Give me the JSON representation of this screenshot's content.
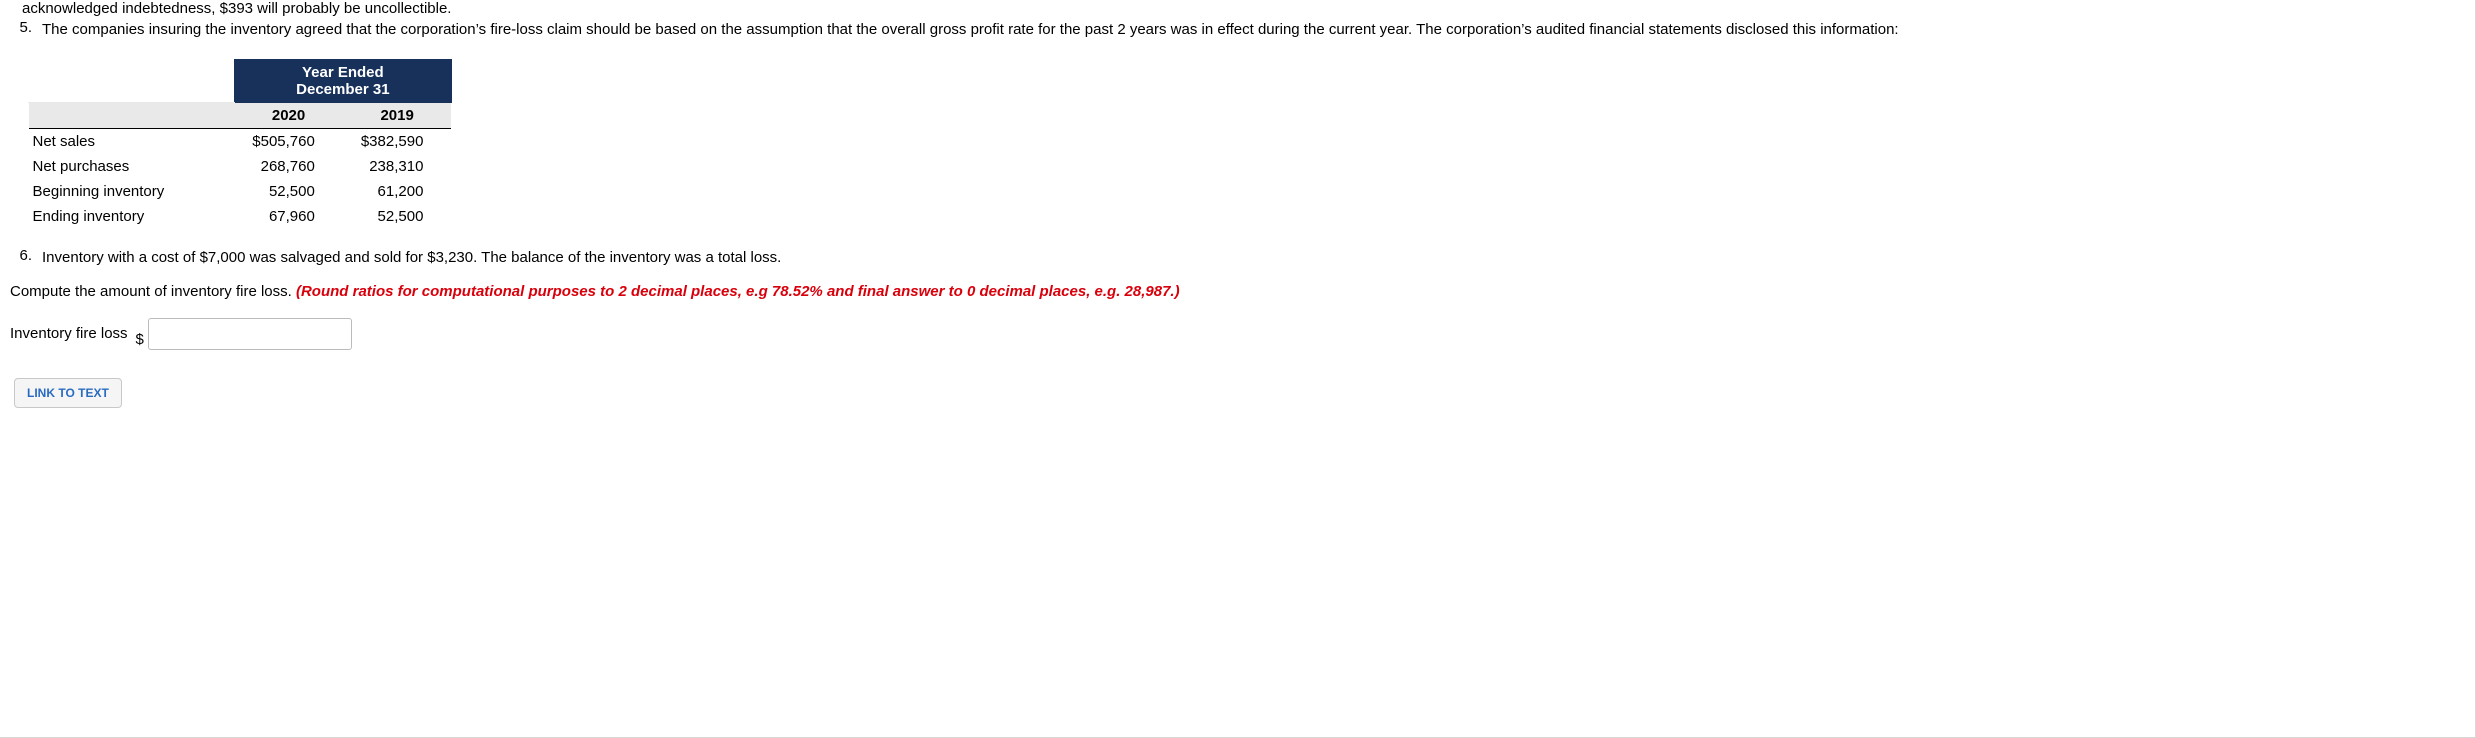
{
  "truncated_top": "acknowledged indebtedness, $393 will probably be uncollectible.",
  "item5": {
    "num": "5.",
    "text": "The companies insuring the inventory agreed that the corporation’s fire-loss claim should be based on the assumption that the overall gross profit rate for the past 2 years was in effect during the current year. The corporation’s audited financial statements disclosed this information:"
  },
  "table": {
    "header_title_line1": "Year Ended",
    "header_title_line2": "December 31",
    "col_2020": "2020",
    "col_2019": "2019",
    "rows": {
      "net_sales": {
        "label": "Net sales",
        "y2020": "$505,760",
        "y2019": "$382,590"
      },
      "net_purchases": {
        "label": "Net purchases",
        "y2020": "268,760",
        "y2019": "238,310"
      },
      "beg_inventory": {
        "label": "Beginning inventory",
        "y2020": "52,500",
        "y2019": "61,200"
      },
      "end_inventory": {
        "label": "Ending inventory",
        "y2020": "67,960",
        "y2019": "52,500"
      }
    },
    "colors": {
      "header_bg": "#18315b",
      "header_text": "#ffffff",
      "subheader_bg": "#e9e9e9",
      "border": "#000000"
    }
  },
  "item6": {
    "num": "6.",
    "text": "Inventory with a cost of $7,000 was salvaged and sold for $3,230. The balance of the inventory was a total loss."
  },
  "prompt": {
    "black": "Compute the amount of inventory fire loss. ",
    "red": "(Round ratios for computational purposes to 2 decimal places, e.g 78.52% and final answer to 0 decimal places, e.g. 28,987.)"
  },
  "answer": {
    "label": "Inventory fire loss",
    "currency": "$",
    "value": ""
  },
  "link_button": "LINK TO TEXT"
}
